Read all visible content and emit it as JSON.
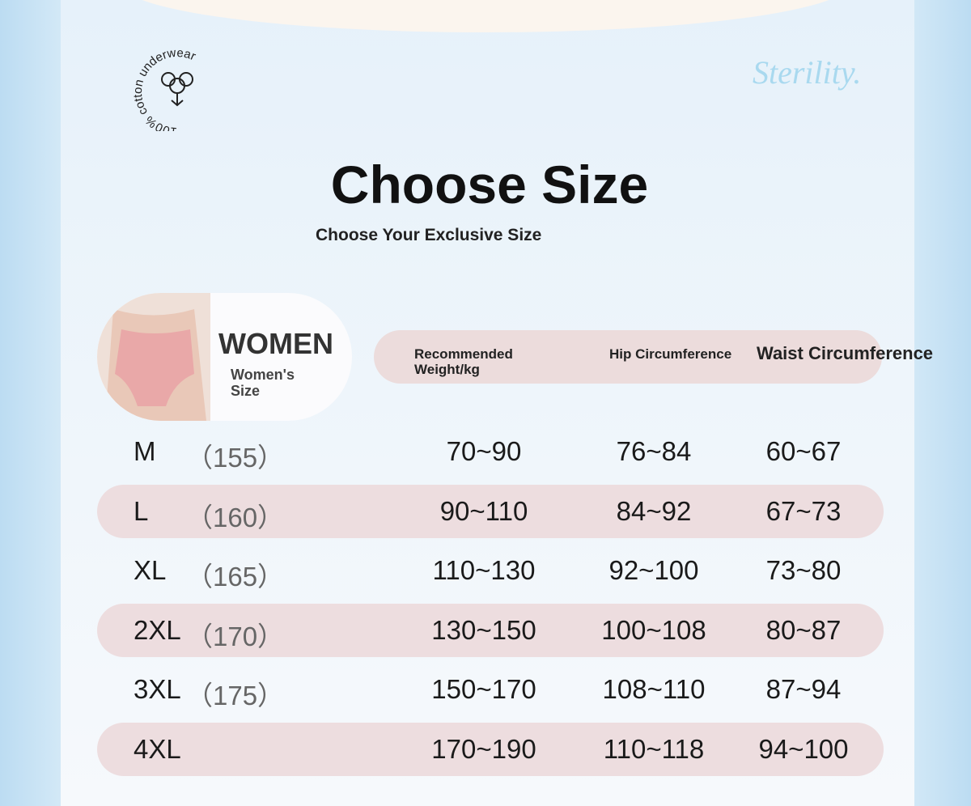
{
  "badge": {
    "text": "100% cotton underwear"
  },
  "brand": "Sterility.",
  "header": {
    "title": "Choose Size",
    "subtitle": "Choose Your Exclusive Size"
  },
  "women": {
    "label": "WOMEN",
    "sublabel": "Women's Size"
  },
  "table": {
    "columns": [
      "Recommended Weight/kg",
      "Hip Circumference",
      "Waist Circumference"
    ],
    "rows": [
      {
        "size": "M",
        "height": "（155）",
        "cells": [
          "70~90",
          "76~84",
          "60~67"
        ]
      },
      {
        "size": "L",
        "height": "（160）",
        "cells": [
          "90~110",
          "84~92",
          "67~73"
        ]
      },
      {
        "size": "XL",
        "height": "（165）",
        "cells": [
          "110~130",
          "92~100",
          "73~80"
        ]
      },
      {
        "size": "2XL",
        "height": "（170）",
        "cells": [
          "130~150",
          "100~108",
          "80~87"
        ]
      },
      {
        "size": "3XL",
        "height": "（175）",
        "cells": [
          "150~170",
          "108~110",
          "87~94"
        ]
      },
      {
        "size": "4XL",
        "cells": [
          "170~190",
          "110~118",
          "94~100"
        ]
      }
    ]
  }
}
